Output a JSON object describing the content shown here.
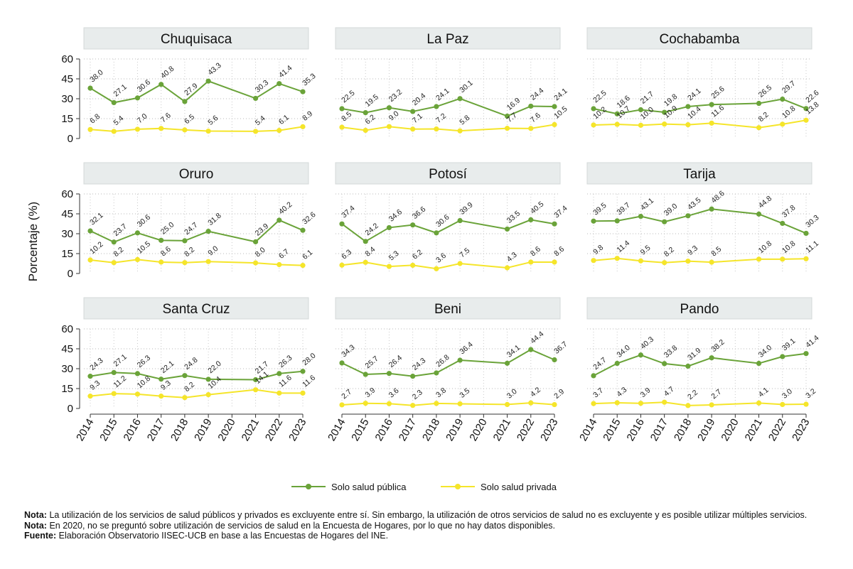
{
  "chart_data": {
    "type": "line",
    "ylabel": "Porcentaje (%)",
    "yticks": [
      0,
      15,
      30,
      45,
      60
    ],
    "ylim": [
      0,
      60
    ],
    "x": [
      "2014",
      "2015",
      "2016",
      "2017",
      "2018",
      "2019",
      "2020",
      "2021",
      "2022",
      "2023"
    ],
    "legend": {
      "position": "bottom",
      "entries": [
        {
          "name": "Solo salud pública",
          "color": "#6aa339"
        },
        {
          "name": "Solo salud privada",
          "color": "#f5e52a"
        }
      ]
    },
    "panels": [
      {
        "title": "Chuquisaca",
        "series": [
          {
            "name": "Solo salud pública",
            "values": [
              38.0,
              27.1,
              30.6,
              40.8,
              27.9,
              43.3,
              null,
              30.3,
              41.4,
              35.3
            ]
          },
          {
            "name": "Solo salud privada",
            "values": [
              6.8,
              5.4,
              7.0,
              7.6,
              6.5,
              5.6,
              null,
              5.4,
              6.1,
              8.9
            ]
          }
        ]
      },
      {
        "title": "La Paz",
        "series": [
          {
            "name": "Solo salud pública",
            "values": [
              22.5,
              19.5,
              23.2,
              20.4,
              24.1,
              30.1,
              null,
              16.9,
              24.4,
              24.1
            ]
          },
          {
            "name": "Solo salud privada",
            "values": [
              8.5,
              6.2,
              9.0,
              7.1,
              7.2,
              5.8,
              null,
              7.7,
              7.6,
              10.5
            ]
          }
        ]
      },
      {
        "title": "Cochabamba",
        "series": [
          {
            "name": "Solo salud pública",
            "values": [
              22.5,
              18.6,
              21.7,
              19.8,
              24.1,
              25.6,
              null,
              26.5,
              29.7,
              22.6
            ]
          },
          {
            "name": "Solo salud privada",
            "values": [
              10.2,
              10.7,
              10.0,
              10.9,
              10.4,
              11.6,
              null,
              8.2,
              10.8,
              13.8
            ]
          }
        ]
      },
      {
        "title": "Oruro",
        "series": [
          {
            "name": "Solo salud pública",
            "values": [
              32.1,
              23.7,
              30.6,
              25.0,
              24.7,
              31.8,
              null,
              23.9,
              40.2,
              32.6
            ]
          },
          {
            "name": "Solo salud privada",
            "values": [
              10.2,
              8.2,
              10.5,
              8.6,
              8.2,
              9.0,
              null,
              8.0,
              6.7,
              6.1
            ]
          }
        ]
      },
      {
        "title": "Potosí",
        "series": [
          {
            "name": "Solo salud pública",
            "values": [
              37.4,
              24.2,
              34.6,
              36.6,
              30.6,
              39.9,
              null,
              33.5,
              40.5,
              37.4
            ]
          },
          {
            "name": "Solo salud privada",
            "values": [
              6.3,
              8.4,
              5.3,
              6.2,
              3.6,
              7.5,
              null,
              4.3,
              8.6,
              8.6
            ]
          }
        ]
      },
      {
        "title": "Tarija",
        "series": [
          {
            "name": "Solo salud pública",
            "values": [
              39.5,
              39.7,
              43.1,
              39.0,
              43.5,
              48.6,
              null,
              44.8,
              37.8,
              30.3
            ]
          },
          {
            "name": "Solo salud privada",
            "values": [
              9.8,
              11.4,
              9.5,
              8.2,
              9.3,
              8.5,
              null,
              10.8,
              10.8,
              11.1
            ]
          }
        ]
      },
      {
        "title": "Santa Cruz",
        "series": [
          {
            "name": "Solo salud pública",
            "values": [
              24.3,
              27.1,
              26.3,
              22.1,
              24.8,
              22.0,
              null,
              21.7,
              26.3,
              28.0
            ]
          },
          {
            "name": "Solo salud privada",
            "values": [
              9.3,
              11.2,
              10.8,
              9.3,
              8.2,
              10.4,
              null,
              14.1,
              11.6,
              11.6
            ]
          }
        ]
      },
      {
        "title": "Beni",
        "series": [
          {
            "name": "Solo salud pública",
            "values": [
              34.3,
              25.7,
              26.4,
              24.3,
              26.8,
              36.4,
              null,
              34.1,
              44.4,
              36.7
            ]
          },
          {
            "name": "Solo salud privada",
            "values": [
              2.7,
              3.9,
              3.6,
              2.3,
              3.8,
              3.5,
              null,
              3.0,
              4.2,
              2.9
            ]
          }
        ]
      },
      {
        "title": "Pando",
        "series": [
          {
            "name": "Solo salud pública",
            "values": [
              24.7,
              34.0,
              40.3,
              33.8,
              31.9,
              38.2,
              null,
              34.0,
              39.1,
              41.4
            ]
          },
          {
            "name": "Solo salud privada",
            "values": [
              3.7,
              4.3,
              3.9,
              4.7,
              2.2,
              2.7,
              null,
              4.1,
              3.0,
              3.2
            ]
          }
        ]
      }
    ]
  },
  "notes": [
    {
      "label": "Nota:",
      "text": "La utilización de los servicios de salud públicos y privados es excluyente entre sí. Sin embargo, la utilización de otros servicios de salud no es excluyente y es posible utilizar múltiples servicios."
    },
    {
      "label": "Nota:",
      "text": "En 2020, no se preguntó sobre utilización de servicios de salud en la Encuesta de Hogares, por lo que no hay datos disponibles."
    },
    {
      "label": "Fuente:",
      "text": "Elaboración Observatorio IISEC-UCB en base a las Encuestas de Hogares del INE."
    }
  ]
}
